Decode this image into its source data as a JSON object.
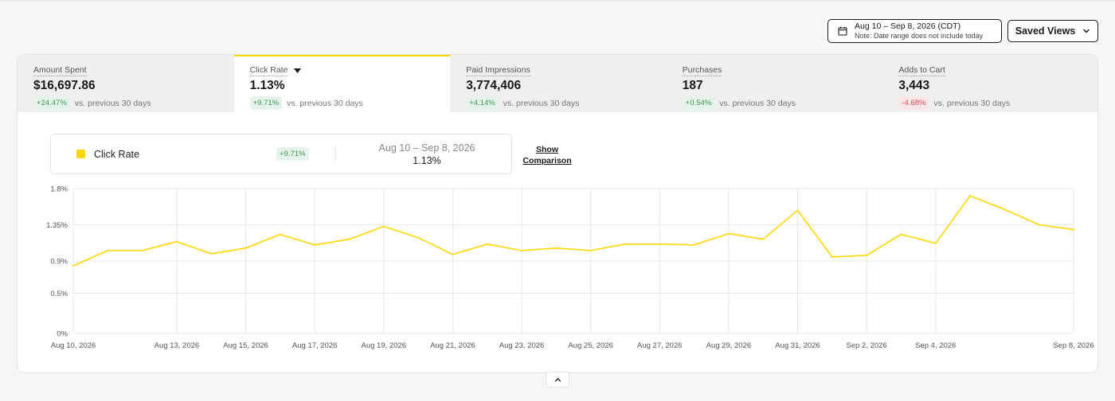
{
  "header": {
    "date_range": "Aug 10 – Sep 8, 2026 (CDT)",
    "date_note": "Note: Date range does not include today",
    "saved_views": "Saved Views"
  },
  "tabs": [
    {
      "label": "Amount Spent",
      "value": "$16,697.86",
      "delta": "+24.47%",
      "trend": "pos",
      "comparison": "vs. previous 30 days",
      "active": false
    },
    {
      "label": "Click Rate",
      "value": "1.13%",
      "delta": "+9.71%",
      "trend": "pos",
      "comparison": "vs. previous 30 days",
      "active": true
    },
    {
      "label": "Paid Impressions",
      "value": "3,774,406",
      "delta": "+4.14%",
      "trend": "pos",
      "comparison": "vs. previous 30 days",
      "active": false
    },
    {
      "label": "Purchases",
      "value": "187",
      "delta": "+0.54%",
      "trend": "pos",
      "comparison": "vs. previous 30 days",
      "active": false
    },
    {
      "label": "Adds to Cart",
      "value": "3,443",
      "delta": "-4.68%",
      "trend": "neg",
      "comparison": "vs. previous 30 days",
      "active": false
    }
  ],
  "legend": {
    "metric": "Click Rate",
    "delta": "+9.71%",
    "range": "Aug 10 – Sep 8, 2026",
    "value": "1.13%",
    "show_comparison_line1": "Show",
    "show_comparison_line2": "Comparison"
  },
  "colors": {
    "accent": "#ffd600",
    "positive": "#3d9a5a",
    "negative": "#d9505b"
  },
  "chart_data": {
    "type": "line",
    "y_ticks": [
      0,
      0.5,
      0.9,
      1.35,
      1.8
    ],
    "y_tick_labels": [
      "0%",
      "0.5%",
      "0.9%",
      "1.35%",
      "1.8%"
    ],
    "ylim": [
      0,
      1.8
    ],
    "x_tick_labels": [
      {
        "i": 0,
        "label": "Aug 10, 2026"
      },
      {
        "i": 3,
        "label": "Aug 13, 2026"
      },
      {
        "i": 5,
        "label": "Aug 15, 2026"
      },
      {
        "i": 7,
        "label": "Aug 17, 2026"
      },
      {
        "i": 9,
        "label": "Aug 19, 2026"
      },
      {
        "i": 11,
        "label": "Aug 21, 2026"
      },
      {
        "i": 13,
        "label": "Aug 23, 2026"
      },
      {
        "i": 15,
        "label": "Aug 25, 2026"
      },
      {
        "i": 17,
        "label": "Aug 27, 2026"
      },
      {
        "i": 19,
        "label": "Aug 29, 2026"
      },
      {
        "i": 21,
        "label": "Aug 31, 2026"
      },
      {
        "i": 23,
        "label": "Sep 2, 2026"
      },
      {
        "i": 25,
        "label": "Sep 4, 2026"
      },
      {
        "i": 29,
        "label": "Sep 8, 2026"
      }
    ],
    "grid": true,
    "series": [
      {
        "color": "#ffd600",
        "values": [
          0.84,
          1.03,
          1.03,
          1.14,
          0.99,
          1.06,
          1.23,
          1.1,
          1.17,
          1.33,
          1.19,
          0.98,
          1.11,
          1.03,
          1.06,
          1.03,
          1.11,
          1.11,
          1.1,
          1.24,
          1.17,
          1.53,
          0.95,
          0.97,
          1.23,
          1.12,
          1.71,
          1.54,
          1.35,
          1.29
        ]
      }
    ]
  }
}
